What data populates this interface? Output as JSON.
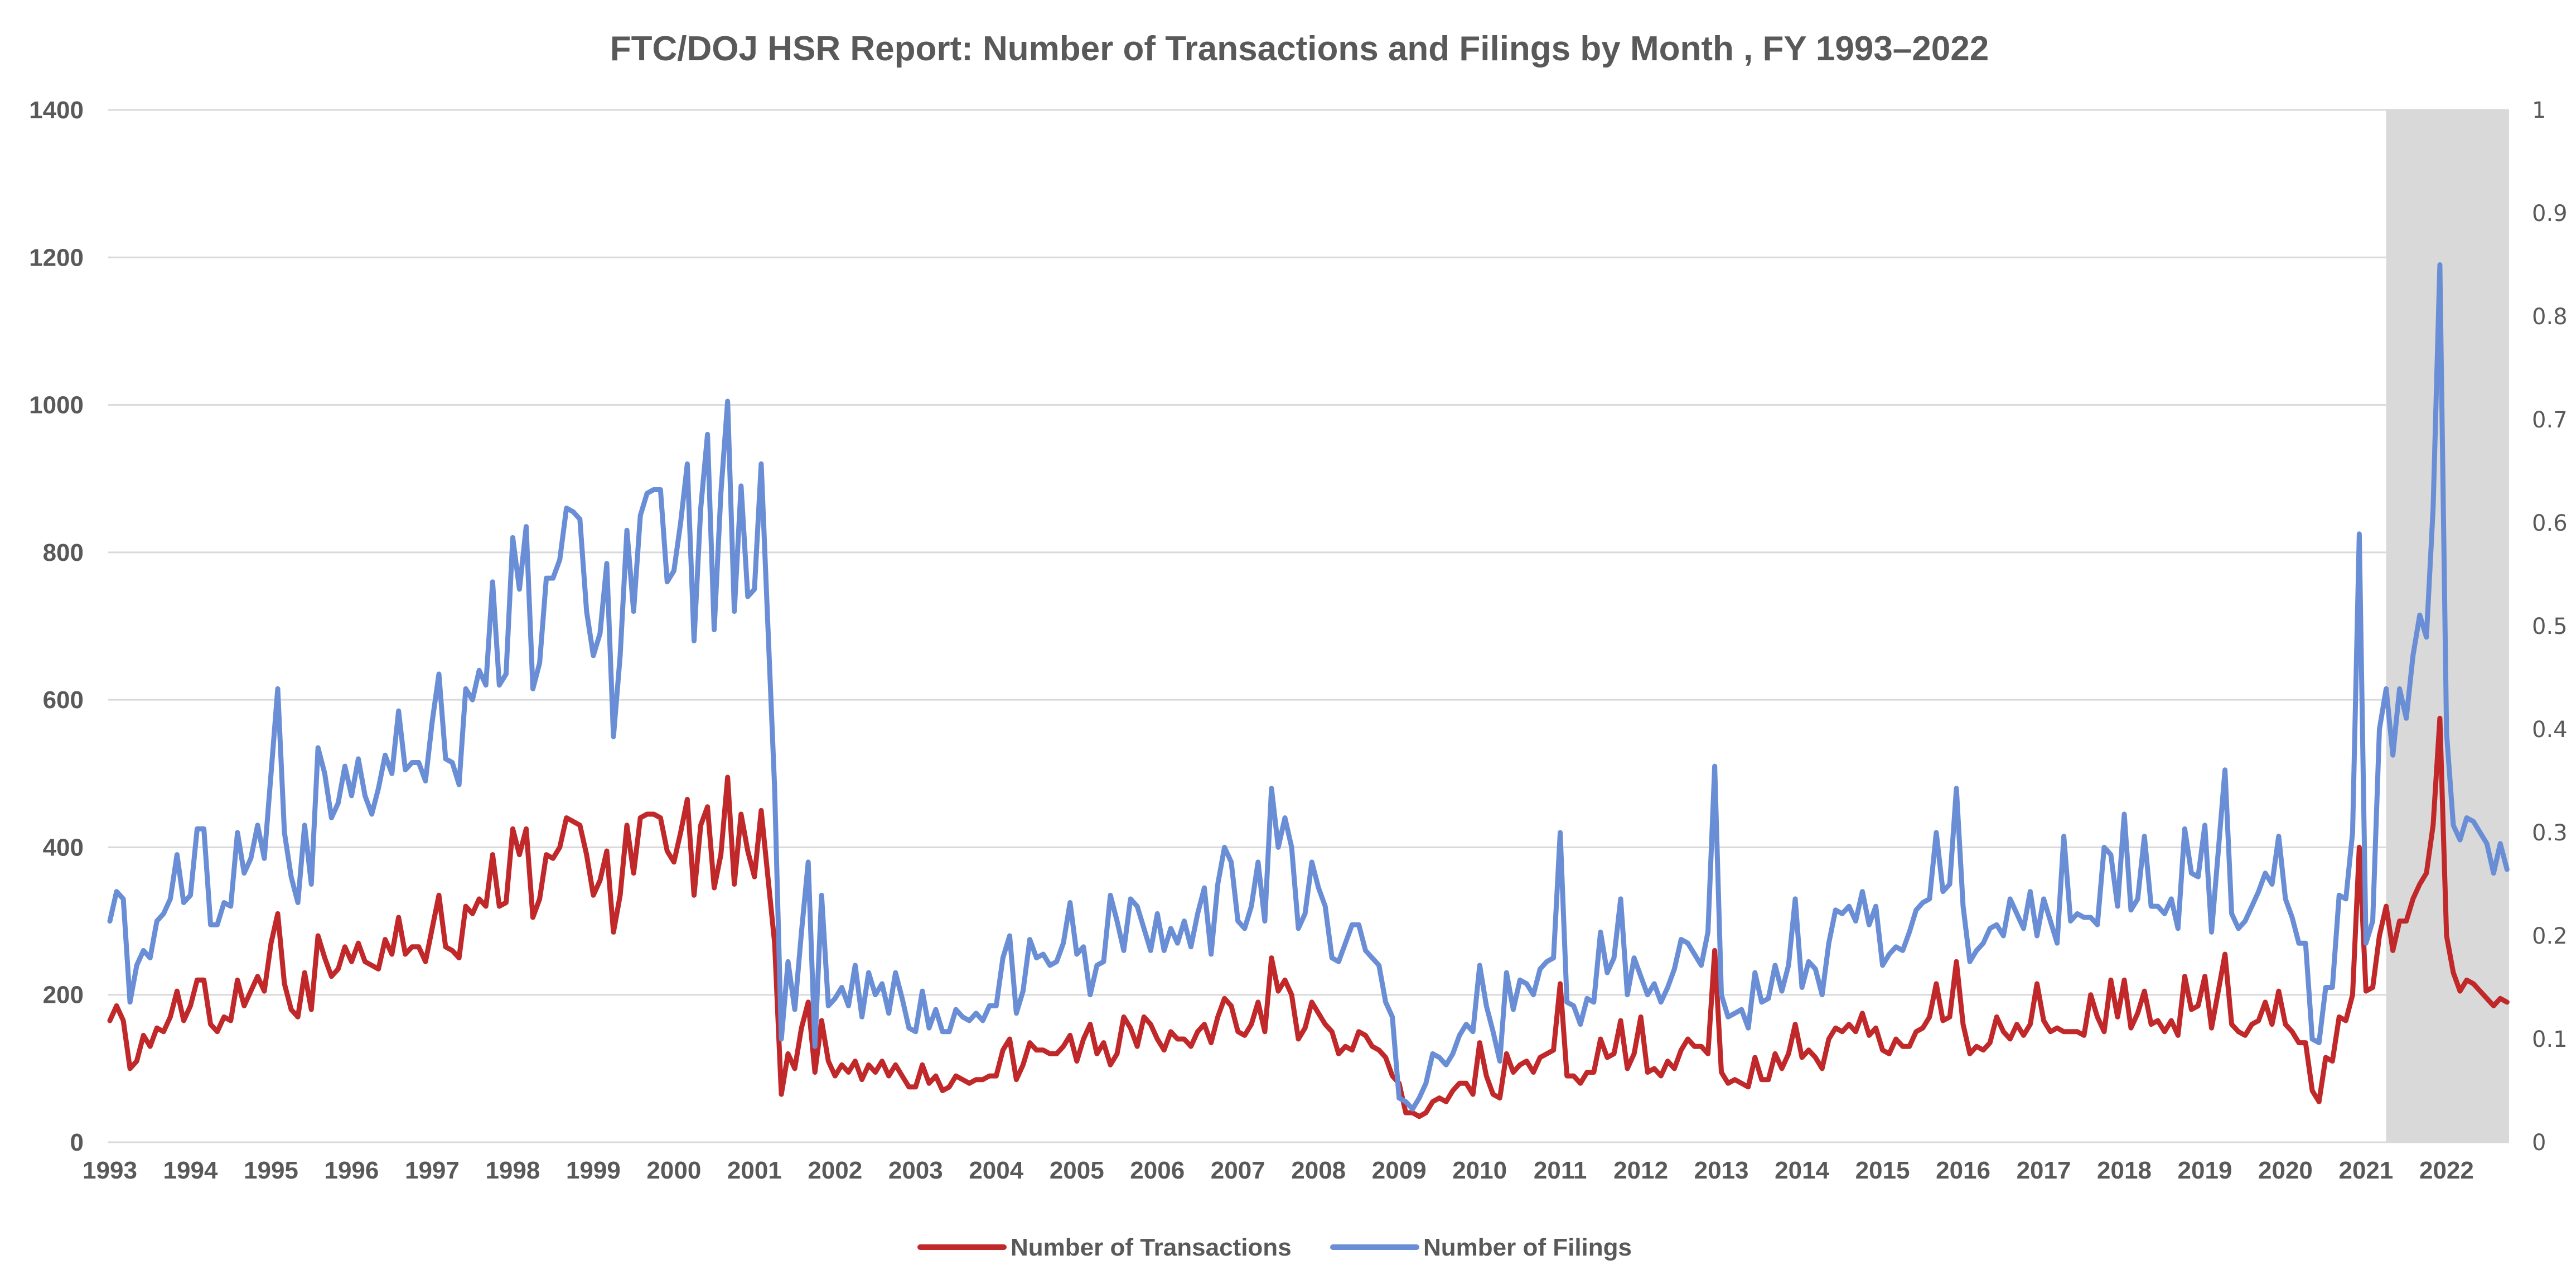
{
  "chart_data": {
    "type": "line",
    "title": "FTC/DOJ HSR Report: Number of Transactions and Filings by Month , FY 1993–2022",
    "x_start": "1993-01",
    "x_frequency": "monthly",
    "x_tick_labels": [
      "1993",
      "1994",
      "1995",
      "1996",
      "1997",
      "1998",
      "1999",
      "2000",
      "2001",
      "2002",
      "2003",
      "2004",
      "2005",
      "2006",
      "2007",
      "2008",
      "2009",
      "2010",
      "2011",
      "2012",
      "2013",
      "2014",
      "2015",
      "2016",
      "2017",
      "2018",
      "2019",
      "2020",
      "2021",
      "2022"
    ],
    "ylim": [
      0,
      1400
    ],
    "y_ticks": [
      0,
      200,
      400,
      600,
      800,
      1000,
      1200,
      1400
    ],
    "y2lim": [
      0,
      1
    ],
    "y2_ticks": [
      "0",
      "0.1",
      "0.2",
      "0.3",
      "0.4",
      "0.5",
      "0.6",
      "0.7",
      "0.8",
      "0.9",
      "1"
    ],
    "grid": true,
    "legend_position": "bottom",
    "shaded_region": {
      "from": "2021-04",
      "to": "2022-12",
      "y2_value": 1,
      "color": "#D9D9D9"
    },
    "series": [
      {
        "name": "Number of Transactions",
        "color": "#C0282A",
        "values": [
          165,
          185,
          165,
          100,
          110,
          145,
          130,
          155,
          150,
          170,
          205,
          165,
          185,
          220,
          220,
          160,
          150,
          170,
          165,
          220,
          185,
          205,
          225,
          205,
          270,
          310,
          215,
          180,
          170,
          230,
          180,
          280,
          250,
          225,
          235,
          265,
          245,
          270,
          245,
          240,
          235,
          275,
          255,
          305,
          255,
          265,
          265,
          245,
          290,
          335,
          265,
          260,
          250,
          320,
          310,
          330,
          320,
          390,
          320,
          325,
          425,
          390,
          425,
          305,
          330,
          390,
          385,
          400,
          440,
          435,
          430,
          390,
          335,
          355,
          395,
          285,
          335,
          430,
          365,
          440,
          445,
          445,
          440,
          395,
          380,
          420,
          465,
          335,
          430,
          455,
          345,
          390,
          495,
          350,
          445,
          395,
          360,
          450,
          360,
          270,
          65,
          120,
          100,
          155,
          190,
          95,
          165,
          110,
          90,
          105,
          95,
          110,
          85,
          105,
          95,
          110,
          90,
          105,
          90,
          75,
          75,
          105,
          80,
          90,
          70,
          75,
          90,
          85,
          80,
          85,
          85,
          90,
          90,
          125,
          140,
          85,
          105,
          135,
          125,
          125,
          120,
          120,
          130,
          145,
          110,
          140,
          160,
          120,
          135,
          105,
          120,
          170,
          155,
          130,
          170,
          160,
          140,
          125,
          150,
          140,
          140,
          130,
          150,
          160,
          135,
          170,
          195,
          185,
          150,
          145,
          160,
          190,
          150,
          250,
          205,
          220,
          200,
          140,
          155,
          190,
          175,
          160,
          150,
          120,
          130,
          125,
          150,
          145,
          130,
          125,
          115,
          90,
          80,
          40,
          40,
          35,
          40,
          55,
          60,
          55,
          70,
          80,
          80,
          65,
          135,
          90,
          65,
          60,
          120,
          95,
          105,
          110,
          95,
          115,
          120,
          125,
          215,
          90,
          90,
          80,
          95,
          95,
          140,
          115,
          120,
          165,
          100,
          120,
          170,
          95,
          100,
          90,
          110,
          100,
          125,
          140,
          130,
          130,
          120,
          260,
          95,
          80,
          85,
          80,
          75,
          115,
          85,
          85,
          120,
          100,
          120,
          160,
          115,
          125,
          115,
          100,
          140,
          155,
          150,
          160,
          150,
          175,
          145,
          155,
          125,
          120,
          140,
          130,
          130,
          150,
          155,
          170,
          215,
          165,
          170,
          245,
          160,
          120,
          130,
          125,
          135,
          170,
          150,
          140,
          160,
          145,
          160,
          215,
          165,
          150,
          155,
          150,
          150,
          150,
          145,
          200,
          170,
          150,
          220,
          170,
          220,
          155,
          175,
          205,
          160,
          165,
          150,
          165,
          145,
          225,
          180,
          185,
          225,
          155,
          205,
          255,
          160,
          150,
          145,
          160,
          165,
          190,
          160,
          205,
          160,
          150,
          135,
          135,
          70,
          55,
          115,
          110,
          170,
          165,
          200,
          400,
          205,
          210,
          280,
          320,
          260,
          300,
          300,
          330,
          350,
          365,
          430,
          575,
          280,
          230,
          205,
          220,
          215,
          205,
          195,
          185,
          195,
          190
        ]
      },
      {
        "name": "Number of Filings",
        "color": "#6A8ED6",
        "values": [
          300,
          340,
          330,
          190,
          240,
          260,
          250,
          300,
          310,
          330,
          390,
          325,
          335,
          425,
          425,
          295,
          295,
          325,
          320,
          420,
          365,
          385,
          430,
          385,
          500,
          615,
          420,
          360,
          325,
          430,
          350,
          535,
          500,
          440,
          460,
          510,
          470,
          520,
          470,
          445,
          480,
          525,
          500,
          585,
          505,
          515,
          515,
          490,
          570,
          635,
          520,
          515,
          485,
          615,
          600,
          640,
          620,
          760,
          620,
          635,
          820,
          750,
          835,
          615,
          650,
          765,
          765,
          790,
          860,
          855,
          845,
          720,
          660,
          690,
          785,
          550,
          660,
          830,
          720,
          850,
          880,
          885,
          885,
          760,
          775,
          840,
          920,
          680,
          860,
          960,
          695,
          880,
          1005,
          720,
          890,
          740,
          750,
          920,
          700,
          480,
          140,
          245,
          180,
          285,
          380,
          130,
          335,
          185,
          195,
          210,
          185,
          240,
          170,
          230,
          200,
          215,
          175,
          230,
          195,
          155,
          150,
          205,
          155,
          180,
          150,
          150,
          180,
          170,
          165,
          175,
          165,
          185,
          185,
          250,
          280,
          175,
          205,
          275,
          250,
          255,
          240,
          245,
          270,
          325,
          255,
          265,
          200,
          240,
          245,
          335,
          300,
          260,
          330,
          320,
          290,
          260,
          310,
          260,
          290,
          270,
          300,
          265,
          310,
          345,
          255,
          350,
          400,
          380,
          300,
          290,
          320,
          380,
          300,
          480,
          400,
          440,
          400,
          290,
          310,
          380,
          345,
          320,
          250,
          245,
          270,
          295,
          295,
          260,
          250,
          240,
          190,
          170,
          60,
          55,
          45,
          60,
          80,
          120,
          115,
          105,
          120,
          145,
          160,
          150,
          240,
          185,
          150,
          110,
          230,
          180,
          220,
          215,
          200,
          235,
          245,
          250,
          420,
          190,
          185,
          160,
          195,
          190,
          285,
          230,
          250,
          330,
          200,
          250,
          225,
          200,
          215,
          190,
          210,
          235,
          275,
          270,
          255,
          240,
          285,
          510,
          200,
          170,
          175,
          180,
          155,
          230,
          190,
          195,
          240,
          205,
          240,
          330,
          210,
          245,
          235,
          200,
          270,
          315,
          310,
          320,
          300,
          340,
          295,
          320,
          240,
          255,
          265,
          260,
          285,
          315,
          325,
          330,
          420,
          340,
          350,
          480,
          320,
          245,
          260,
          270,
          290,
          295,
          280,
          330,
          310,
          290,
          340,
          280,
          330,
          300,
          270,
          415,
          300,
          310,
          305,
          305,
          295,
          400,
          390,
          320,
          445,
          315,
          330,
          415,
          320,
          320,
          310,
          330,
          290,
          425,
          365,
          360,
          430,
          285,
          395,
          505,
          310,
          290,
          300,
          320,
          340,
          365,
          350,
          415,
          330,
          305,
          270,
          270,
          140,
          135,
          210,
          210,
          335,
          330,
          420,
          825,
          270,
          300,
          560,
          615,
          525,
          615,
          575,
          660,
          715,
          685,
          860,
          1190,
          555,
          430,
          410,
          440,
          435,
          420,
          405,
          365,
          405,
          370
        ]
      }
    ]
  }
}
